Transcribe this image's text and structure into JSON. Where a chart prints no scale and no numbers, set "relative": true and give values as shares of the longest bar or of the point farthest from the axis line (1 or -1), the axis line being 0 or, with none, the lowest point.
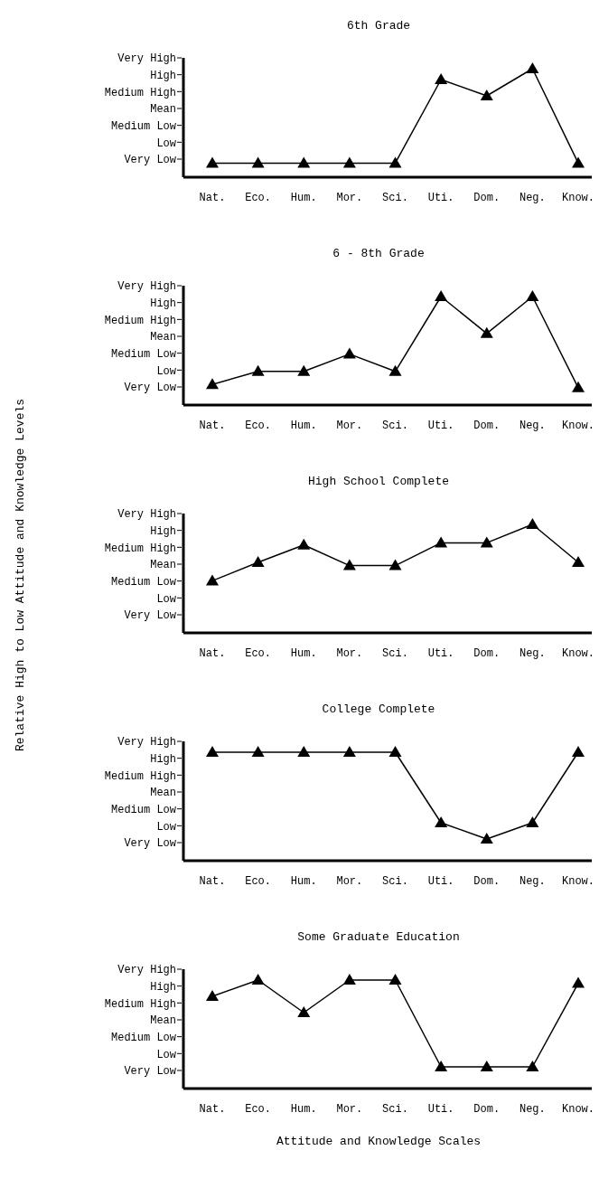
{
  "chart_data": [
    {
      "type": "line",
      "title": "6th Grade",
      "relative": true,
      "annotations": [
        "Very High",
        "High",
        "Medium High",
        "Mean",
        "Medium Low",
        "Low",
        "Very Low"
      ],
      "categories": [
        "Nat.",
        "Eco.",
        "Hum.",
        "Mor.",
        "Sci.",
        "Uti.",
        "Dom.",
        "Neg.",
        "Know."
      ],
      "series": [
        {
          "color": "#000000",
          "values": [
            0.13,
            0.13,
            0.13,
            0.13,
            0.13,
            0.9,
            0.75,
            1,
            0.13
          ]
        }
      ],
      "marker": "triangle",
      "line_style": "solid"
    },
    {
      "type": "line",
      "title": "6 - 8th Grade",
      "relative": true,
      "annotations": [
        "Very High",
        "High",
        "Medium High",
        "Mean",
        "Medium Low",
        "Low",
        "Very Low"
      ],
      "categories": [
        "Nat.",
        "Eco.",
        "Hum.",
        "Mor.",
        "Sci.",
        "Uti.",
        "Dom.",
        "Neg.",
        "Know."
      ],
      "series": [
        {
          "color": "#000000",
          "values": [
            0.19,
            0.31,
            0.31,
            0.47,
            0.31,
            1,
            0.66,
            1,
            0.16
          ]
        }
      ],
      "marker": "triangle",
      "line_style": "solid"
    },
    {
      "type": "line",
      "title": "High School Complete",
      "ylabel": "Relative High to Low Attitude and Knowledge Levels",
      "relative": true,
      "annotations": [
        "Very High",
        "High",
        "Medium High",
        "Mean",
        "Medium Low",
        "Low",
        "Very Low"
      ],
      "categories": [
        "Nat.",
        "Eco.",
        "Hum.",
        "Mor.",
        "Sci.",
        "Uti.",
        "Dom.",
        "Neg.",
        "Know."
      ],
      "series": [
        {
          "color": "#000000",
          "values": [
            0.48,
            0.65,
            0.81,
            0.62,
            0.62,
            0.83,
            0.83,
            1,
            0.65
          ]
        }
      ],
      "marker": "triangle",
      "line_style": "solid"
    },
    {
      "type": "line",
      "title": "College Complete",
      "relative": true,
      "annotations": [
        "Very High",
        "High",
        "Medium High",
        "Mean",
        "Medium Low",
        "Low",
        "Very Low"
      ],
      "categories": [
        "Nat.",
        "Eco.",
        "Hum.",
        "Mor.",
        "Sci.",
        "Uti.",
        "Dom.",
        "Neg.",
        "Know."
      ],
      "series": [
        {
          "color": "#000000",
          "values": [
            1,
            1,
            1,
            1,
            1,
            0.35,
            0.2,
            0.35,
            1
          ]
        }
      ],
      "marker": "triangle",
      "line_style": "solid"
    },
    {
      "type": "line",
      "title": "Some Graduate Education",
      "xlabel": "Attitude and Knowledge Scales",
      "relative": true,
      "annotations": [
        "Very High",
        "High",
        "Medium High",
        "Mean",
        "Medium Low",
        "Low",
        "Very Low"
      ],
      "categories": [
        "Nat.",
        "Eco.",
        "Hum.",
        "Mor.",
        "Sci.",
        "Uti.",
        "Dom.",
        "Neg.",
        "Know."
      ],
      "series": [
        {
          "color": "#000000",
          "values": [
            0.85,
            1,
            0.7,
            1,
            1,
            0.2,
            0.2,
            0.2,
            0.97
          ]
        }
      ],
      "marker": "triangle",
      "line_style": "solid"
    }
  ]
}
